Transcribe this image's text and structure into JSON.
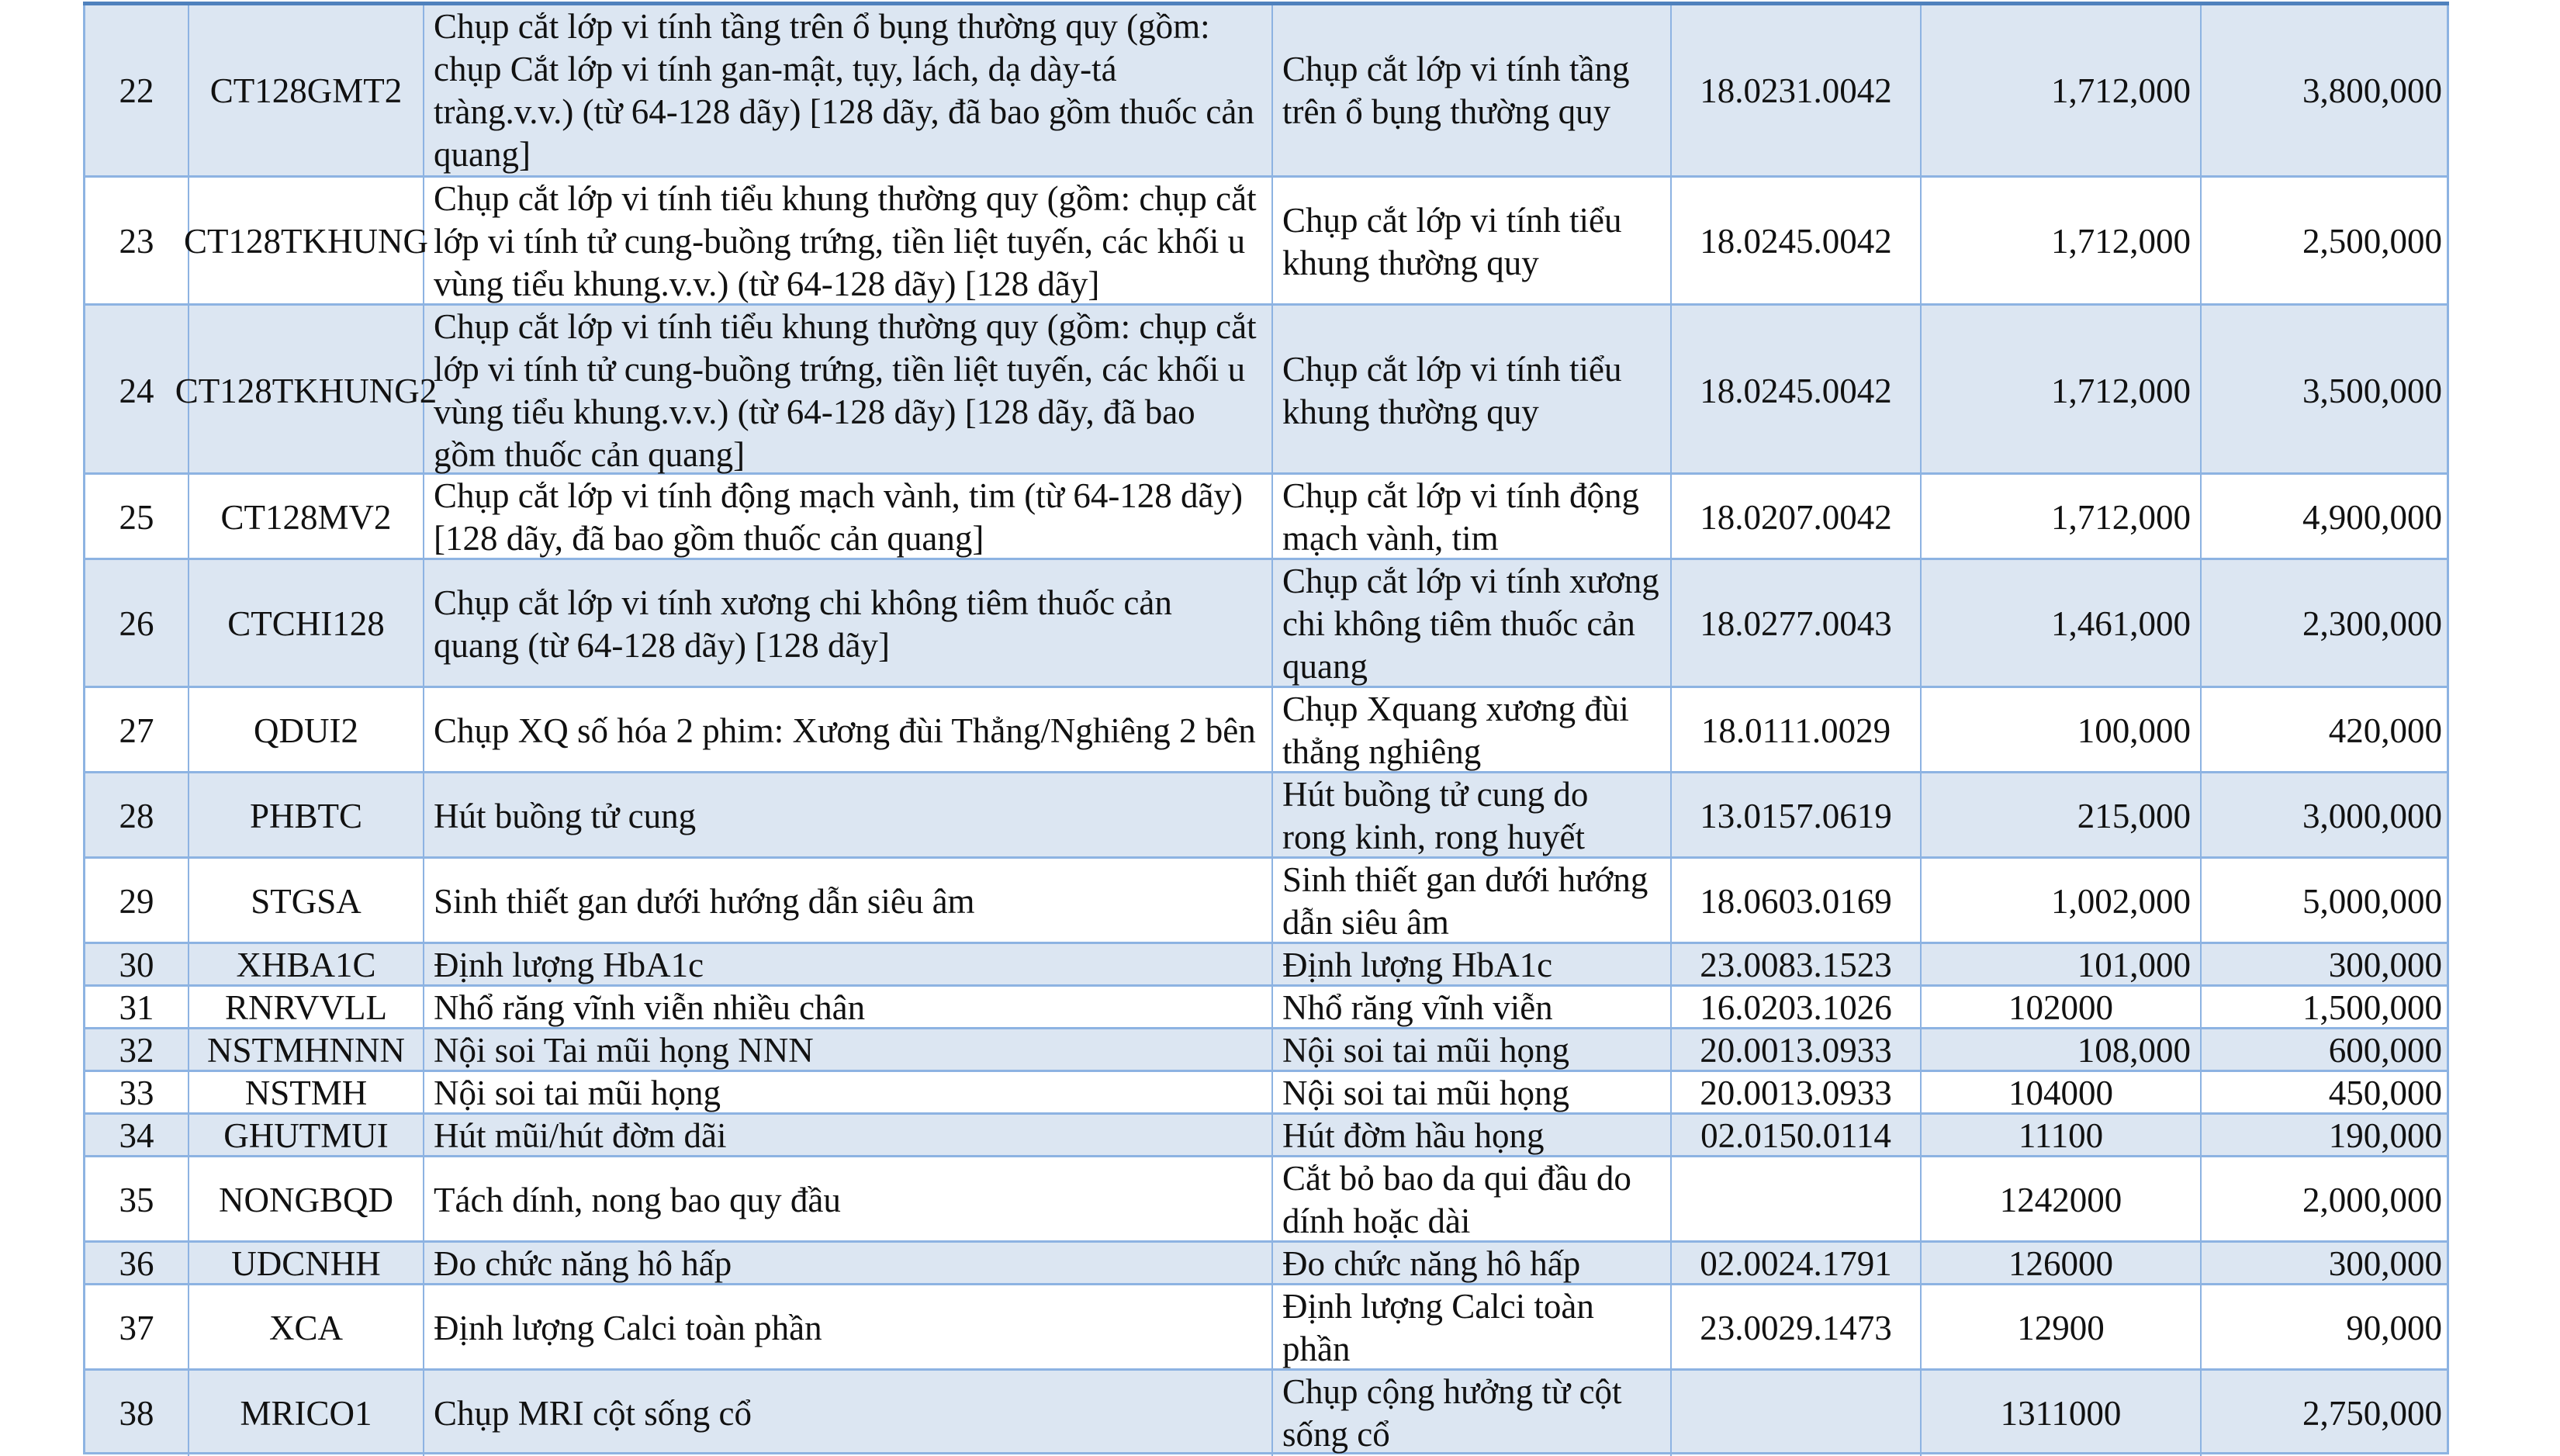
{
  "table": {
    "rows": [
      [
        "22",
        "CT128GMT2",
        "Chụp cắt lớp vi tính tầng trên ổ bụng thường quy (gồm: chụp Cắt lớp vi tính gan-mật, tụy, lách, dạ dày-tá tràng.v.v.) (từ 64-128 dãy) [128 dãy, đã bao gồm thuốc cản quang]",
        "Chụp cắt lớp vi tính tầng trên ổ bụng thường quy",
        "18.0231.0042",
        "1,712,000",
        "3,800,000"
      ],
      [
        "23",
        "CT128TKHUNG",
        "Chụp cắt lớp vi tính tiểu khung thường quy (gồm: chụp cắt lớp vi tính tử cung-buồng trứng, tiền liệt tuyến, các khối u vùng tiểu khung.v.v.) (từ 64-128 dãy) [128 dãy]",
        "Chụp cắt lớp vi tính tiểu khung thường quy",
        "18.0245.0042",
        "1,712,000",
        "2,500,000"
      ],
      [
        "24",
        "CT128TKHUNG2",
        "Chụp cắt lớp vi tính tiểu khung thường quy (gồm: chụp cắt lớp vi tính tử cung-buồng trứng, tiền liệt tuyến, các khối u vùng tiểu khung.v.v.) (từ 64-128 dãy) [128 dãy, đã bao gồm thuốc cản quang]",
        "Chụp cắt lớp vi tính tiểu khung thường quy",
        "18.0245.0042",
        "1,712,000",
        "3,500,000"
      ],
      [
        "25",
        "CT128MV2",
        "Chụp cắt lớp vi tính động mạch vành, tim (từ 64-128 dãy) [128 dãy, đã bao gồm thuốc cản quang]",
        "Chụp cắt lớp vi tính động mạch vành, tim",
        "18.0207.0042",
        "1,712,000",
        "4,900,000"
      ],
      [
        "26",
        "CTCHI128",
        "Chụp cắt lớp vi tính xương chi không tiêm thuốc cản quang (từ 64-128 dãy) [128 dãy]",
        "Chụp cắt lớp vi tính xương chi không tiêm thuốc cản quang",
        "18.0277.0043",
        "1,461,000",
        "2,300,000"
      ],
      [
        "27",
        "QDUI2",
        "Chụp XQ số hóa 2 phim: Xương đùi Thẳng/Nghiêng 2 bên",
        "Chụp Xquang xương đùi thẳng nghiêng",
        "18.0111.0029",
        "100,000",
        "420,000"
      ],
      [
        "28",
        "PHBTC",
        "Hút buồng tử cung",
        "Hút buồng tử cung do rong kinh, rong huyết",
        "13.0157.0619",
        "215,000",
        "3,000,000"
      ],
      [
        "29",
        "STGSA",
        "Sinh thiết gan dưới hướng dẫn siêu âm",
        "Sinh thiết gan dưới hướng dẫn siêu âm",
        "18.0603.0169",
        "1,002,000",
        "5,000,000"
      ],
      [
        "30",
        "XHBA1C",
        "Định lượng HbA1c",
        "Định lượng HbA1c",
        "23.0083.1523",
        "101,000",
        "300,000"
      ],
      [
        "31",
        "RNRVVLL",
        "Nhổ răng vĩnh viễn nhiều chân",
        "Nhổ răng vĩnh viễn",
        "16.0203.1026",
        "102000",
        "1,500,000"
      ],
      [
        "32",
        "NSTMHNNN",
        "Nội soi Tai mũi họng NNN",
        "Nội soi tai mũi họng",
        "20.0013.0933",
        "108,000",
        "600,000"
      ],
      [
        "33",
        "NSTMH",
        "Nội soi tai mũi họng",
        "Nội soi tai mũi họng",
        "20.0013.0933",
        "104000",
        "450,000"
      ],
      [
        "34",
        "GHUTMUI",
        "Hút mũi/hút đờm dãi",
        "Hút đờm hầu họng",
        "02.0150.0114",
        "11100",
        "190,000"
      ],
      [
        "35",
        "NONGBQD",
        "Tách dính, nong bao quy đầu",
        "Cắt bỏ bao da qui đầu do dính hoặc dài",
        null,
        "1242000",
        "2,000,000"
      ],
      [
        "36",
        "UDCNHH",
        "Đo chức năng hô hấp",
        "Đo chức năng hô hấp",
        "02.0024.1791",
        "126000",
        "300,000"
      ],
      [
        "37",
        "XCA",
        "Định lượng Calci toàn phần",
        "Định lượng Calci toàn phần",
        "23.0029.1473",
        "12900",
        "90,000"
      ],
      [
        "38",
        "MRICO1",
        "Chụp MRI cột sống cổ",
        "Chụp cộng hưởng từ cột sống cổ",
        null,
        "1311000",
        "2,750,000"
      ]
    ]
  }
}
